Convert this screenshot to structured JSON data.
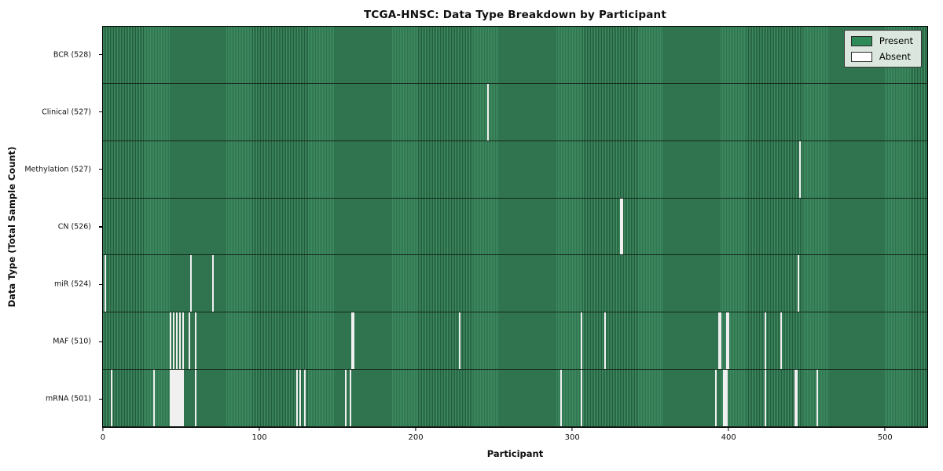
{
  "chart_data": {
    "type": "heatmap",
    "title": "TCGA-HNSC: Data Type Breakdown by Participant",
    "xlabel": "Participant",
    "ylabel": "Data Type (Total Sample Count)",
    "x_ticks": [
      0,
      100,
      200,
      300,
      400,
      500
    ],
    "xlim": [
      0,
      528
    ],
    "n_participants": 528,
    "grid": false,
    "legend_position": "upper right",
    "legend": [
      {
        "label": "Present",
        "color": "#2e8b57"
      },
      {
        "label": "Absent",
        "color": "#ffffff"
      }
    ],
    "rows": [
      {
        "label": "BCR (528)",
        "name": "bcr",
        "total": 528,
        "absent": []
      },
      {
        "label": "Clinical (527)",
        "name": "clinical",
        "total": 527,
        "absent": [
          246
        ]
      },
      {
        "label": "Methylation (527)",
        "name": "methylation",
        "total": 527,
        "absent": [
          446
        ]
      },
      {
        "label": "CN (526)",
        "name": "cn",
        "total": 526,
        "absent": [
          331,
          332
        ]
      },
      {
        "label": "miR (524)",
        "name": "mir",
        "total": 524,
        "absent": [
          1,
          56,
          70,
          445
        ]
      },
      {
        "label": "MAF (510)",
        "name": "maf",
        "total": 510,
        "absent": [
          43,
          45,
          47,
          49,
          51,
          55,
          59,
          159,
          160,
          228,
          306,
          321,
          394,
          395,
          399,
          400,
          424,
          434
        ]
      },
      {
        "label": "mRNA (501)",
        "name": "mrna",
        "total": 501,
        "absent": [
          5,
          32,
          43,
          44,
          45,
          46,
          47,
          48,
          49,
          50,
          51,
          59,
          124,
          126,
          129,
          155,
          158,
          293,
          306,
          392,
          397,
          398,
          399,
          424,
          443,
          444,
          457
        ]
      }
    ],
    "colors": {
      "present": "#2e8b57",
      "present_light": "#3e8b61",
      "present_dark": "#235c3d",
      "absent": "#f0f0f0",
      "divider": "#14251a"
    }
  }
}
